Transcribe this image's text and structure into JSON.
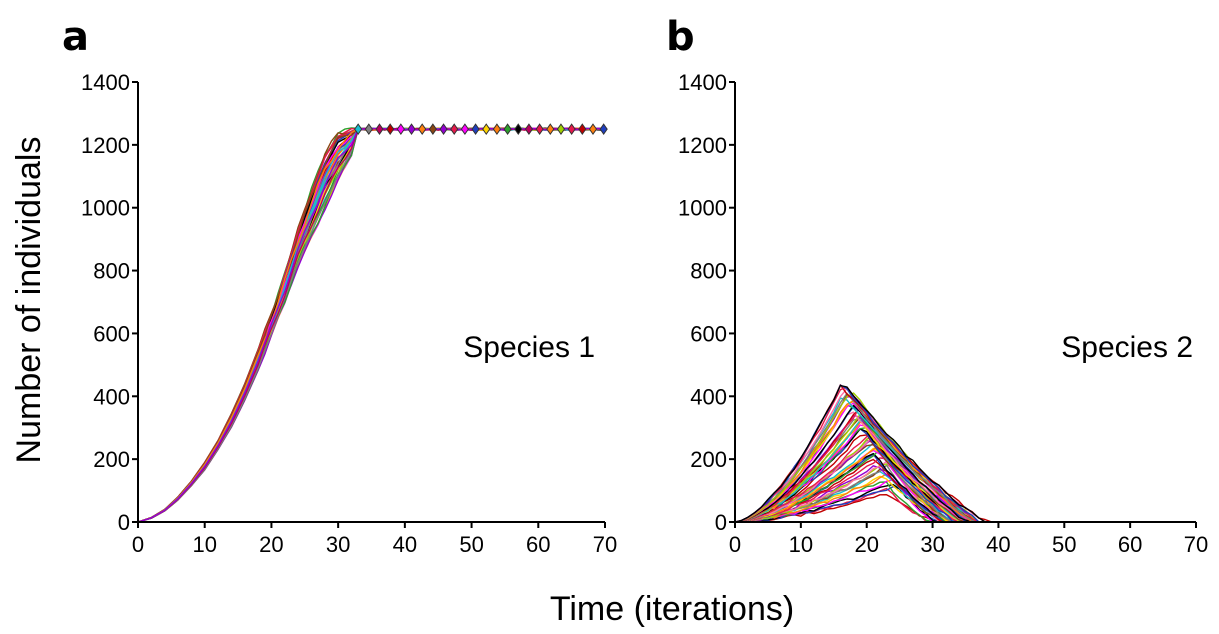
{
  "figure": {
    "xlabel": "Time (iterations)",
    "ylabel": "Number of individuals"
  },
  "chart_data": [
    {
      "type": "line",
      "panel_label": "a",
      "annotation": "Species 1",
      "xlim": [
        0,
        70
      ],
      "ylim": [
        0,
        1400
      ],
      "xticks": [
        0,
        10,
        20,
        30,
        40,
        50,
        60,
        70
      ],
      "yticks": [
        0,
        200,
        400,
        600,
        800,
        1000,
        1200,
        1400
      ],
      "grid": false,
      "colors": [
        "#e6194b",
        "#1f3fbf",
        "#2ca02c",
        "#000000",
        "#ff00ff",
        "#ffd400",
        "#8b4513",
        "#ff7f0e",
        "#17becf",
        "#7f7f7f",
        "#b8005c",
        "#9400d3",
        "#a0d000",
        "#c00000"
      ],
      "band": {
        "x": [
          0,
          2,
          4,
          6,
          8,
          10,
          12,
          14,
          16,
          18,
          20,
          22,
          24,
          26,
          28,
          30,
          32,
          34,
          36,
          38,
          40,
          45,
          50,
          55,
          60,
          65,
          70
        ],
        "lower": [
          0,
          12,
          35,
          70,
          115,
          165,
          230,
          300,
          385,
          480,
          590,
          700,
          810,
          900,
          990,
          1080,
          1170,
          1230,
          1246,
          1248,
          1248,
          1248,
          1248,
          1248,
          1248,
          1248,
          1248
        ],
        "upper": [
          0,
          14,
          40,
          80,
          130,
          190,
          260,
          345,
          440,
          550,
          660,
          790,
          930,
          1060,
          1170,
          1240,
          1252,
          1253,
          1253,
          1253,
          1253,
          1253,
          1253,
          1253,
          1253,
          1253,
          1253
        ]
      },
      "plateau": 1250,
      "plateau_start": 33,
      "series_count": 40
    },
    {
      "type": "line",
      "panel_label": "b",
      "annotation": "Species 2",
      "xlim": [
        0,
        70
      ],
      "ylim": [
        0,
        1400
      ],
      "xticks": [
        0,
        10,
        20,
        30,
        40,
        50,
        60,
        70
      ],
      "yticks": [
        0,
        200,
        400,
        600,
        800,
        1000,
        1200,
        1400
      ],
      "grid": false,
      "colors": [
        "#c00000",
        "#e6194b",
        "#1f3fbf",
        "#000000",
        "#2ca02c",
        "#ff00ff",
        "#ffd400",
        "#ff7f0e",
        "#17becf",
        "#8b4513",
        "#7f7f7f",
        "#9400d3",
        "#a0d000",
        "#ff6fa8"
      ],
      "peak_x_range": [
        16,
        24
      ],
      "peak_y_range": [
        90,
        450
      ],
      "extinction_x_range": [
        30,
        38
      ],
      "series_count": 60
    }
  ]
}
